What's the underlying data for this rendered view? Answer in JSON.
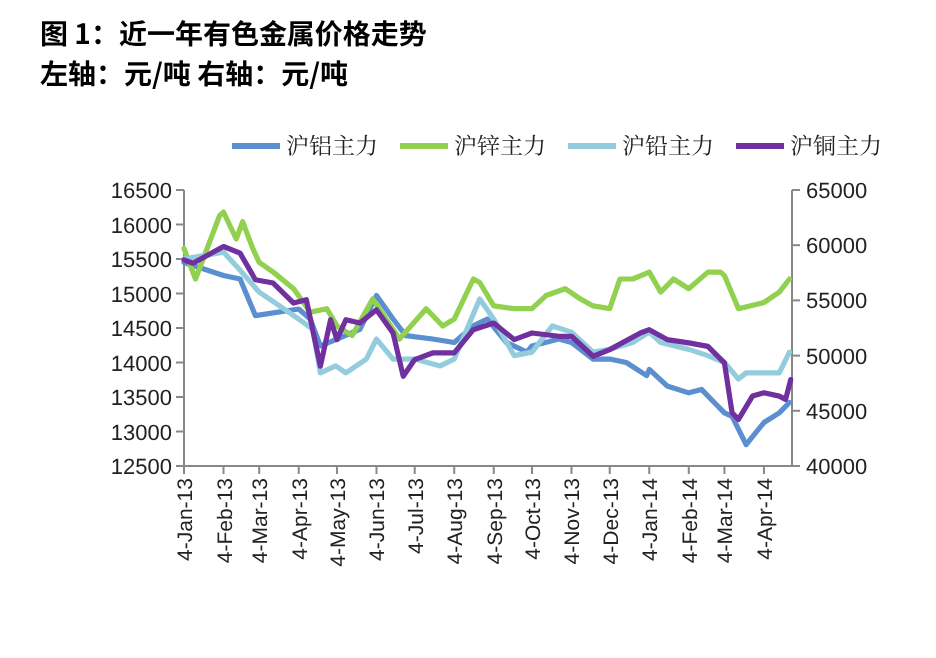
{
  "chart_data": {
    "type": "line",
    "title": "图 1：近一年有色金属价格走势",
    "subtitle": "左轴：元/吨  右轴：元/吨",
    "xlim": [
      "2013-01-04",
      "2014-04-26"
    ],
    "xticks": [
      {
        "value": "2013-01-04",
        "label": "4-Jan-13"
      },
      {
        "value": "2013-02-04",
        "label": "4-Feb-13"
      },
      {
        "value": "2013-03-04",
        "label": "4-Mar-13"
      },
      {
        "value": "2013-04-04",
        "label": "4-Apr-13"
      },
      {
        "value": "2013-05-04",
        "label": "4-May-13"
      },
      {
        "value": "2013-06-04",
        "label": "4-Jun-13"
      },
      {
        "value": "2013-07-04",
        "label": "4-Jul-13"
      },
      {
        "value": "2013-08-04",
        "label": "4-Aug-13"
      },
      {
        "value": "2013-09-04",
        "label": "4-Sep-13"
      },
      {
        "value": "2013-10-04",
        "label": "4-Oct-13"
      },
      {
        "value": "2013-11-04",
        "label": "4-Nov-13"
      },
      {
        "value": "2013-12-04",
        "label": "4-Dec-13"
      },
      {
        "value": "2014-01-04",
        "label": "4-Jan-14"
      },
      {
        "value": "2014-02-04",
        "label": "4-Feb-14"
      },
      {
        "value": "2014-03-04",
        "label": "4-Mar-14"
      },
      {
        "value": "2014-04-04",
        "label": "4-Apr-14"
      }
    ],
    "ylim": [
      12500,
      16500
    ],
    "yticks": [
      12500,
      13000,
      13500,
      14000,
      14500,
      15000,
      15500,
      16000,
      16500
    ],
    "y2lim": [
      40000,
      65000
    ],
    "y2ticks": [
      40000,
      45000,
      50000,
      55000,
      60000,
      65000
    ],
    "grid": false,
    "legend": "top",
    "marker": "none",
    "line_style": "solid",
    "series": [
      {
        "name": "沪铝主力",
        "color": "#5b8fd0",
        "x": [
          "2013-01-04",
          "2013-02-04",
          "2013-02-17",
          "2013-03-01",
          "2013-04-04",
          "2013-04-13",
          "2013-04-21",
          "2013-05-04",
          "2013-05-22",
          "2013-06-04",
          "2013-06-17",
          "2013-06-27",
          "2013-07-18",
          "2013-08-04",
          "2013-08-19",
          "2013-08-30",
          "2013-09-14",
          "2013-09-30",
          "2013-10-04",
          "2013-10-25",
          "2013-11-04",
          "2013-11-21",
          "2013-12-04",
          "2013-12-17",
          "2014-01-02",
          "2014-01-04",
          "2014-01-18",
          "2014-02-04",
          "2014-02-14",
          "2014-02-24",
          "2014-03-04",
          "2014-03-10",
          "2014-03-21",
          "2014-04-04",
          "2014-04-16",
          "2014-04-24"
        ],
        "values": [
          15450,
          15260,
          15210,
          14680,
          14775,
          14630,
          14240,
          14340,
          14480,
          14970,
          14630,
          14390,
          14340,
          14290,
          14530,
          14630,
          14290,
          14150,
          14240,
          14340,
          14290,
          14050,
          14050,
          14000,
          13810,
          13900,
          13660,
          13560,
          13610,
          13420,
          13270,
          13220,
          12810,
          13130,
          13270,
          13420
        ]
      },
      {
        "name": "沪锌主力",
        "color": "#92d050",
        "x": [
          "2013-01-04",
          "2013-01-13",
          "2013-02-01",
          "2013-02-04",
          "2013-02-14",
          "2013-02-19",
          "2013-02-27",
          "2013-03-04",
          "2013-03-15",
          "2013-03-31",
          "2013-04-13",
          "2013-04-26",
          "2013-05-04",
          "2013-05-16",
          "2013-06-01",
          "2013-06-22",
          "2013-07-13",
          "2013-07-26",
          "2013-08-04",
          "2013-08-19",
          "2013-08-24",
          "2013-09-04",
          "2013-09-20",
          "2013-10-04",
          "2013-10-15",
          "2013-10-30",
          "2013-11-11",
          "2013-11-21",
          "2013-12-04",
          "2013-12-12",
          "2013-12-22",
          "2014-01-04",
          "2014-01-13",
          "2014-01-23",
          "2014-02-04",
          "2014-02-19",
          "2014-03-01",
          "2014-03-04",
          "2014-03-15",
          "2014-04-04",
          "2014-04-16",
          "2014-04-24"
        ],
        "values": [
          15650,
          15210,
          16130,
          16180,
          15790,
          16040,
          15650,
          15450,
          15310,
          15070,
          14730,
          14780,
          14530,
          14390,
          14920,
          14340,
          14780,
          14530,
          14630,
          15210,
          15160,
          14820,
          14780,
          14780,
          14970,
          15070,
          14920,
          14820,
          14780,
          15210,
          15210,
          15310,
          15020,
          15210,
          15070,
          15310,
          15310,
          15260,
          14780,
          14870,
          15020,
          15210
        ]
      },
      {
        "name": "沪铅主力",
        "color": "#93cddd",
        "x": [
          "2013-01-04",
          "2013-02-04",
          "2013-02-14",
          "2013-03-04",
          "2013-03-20",
          "2013-04-04",
          "2013-04-15",
          "2013-04-21",
          "2013-05-03",
          "2013-05-11",
          "2013-05-27",
          "2013-06-04",
          "2013-06-17",
          "2013-07-04",
          "2013-07-24",
          "2013-08-04",
          "2013-08-24",
          "2013-09-04",
          "2013-09-20",
          "2013-10-04",
          "2013-10-20",
          "2013-11-04",
          "2013-11-21",
          "2013-12-04",
          "2013-12-22",
          "2014-01-04",
          "2014-01-13",
          "2014-02-04",
          "2014-02-19",
          "2014-03-04",
          "2014-03-15",
          "2014-03-21",
          "2014-04-04",
          "2014-04-16",
          "2014-04-24"
        ],
        "values": [
          15500,
          15600,
          15400,
          15020,
          14820,
          14630,
          14480,
          13850,
          13950,
          13850,
          14050,
          14340,
          14050,
          14050,
          13950,
          14050,
          14920,
          14630,
          14100,
          14150,
          14530,
          14440,
          14150,
          14190,
          14290,
          14440,
          14290,
          14190,
          14100,
          14000,
          13760,
          13850,
          13850,
          13850,
          14150
        ]
      },
      {
        "name": "沪铜主力",
        "color": "#7030a0",
        "axis": "y2",
        "x": [
          "2013-01-04",
          "2013-01-11",
          "2013-02-04",
          "2013-02-17",
          "2013-03-01",
          "2013-03-15",
          "2013-03-31",
          "2013-04-10",
          "2013-04-21",
          "2013-04-29",
          "2013-05-04",
          "2013-05-11",
          "2013-05-22",
          "2013-06-04",
          "2013-06-17",
          "2013-06-25",
          "2013-07-04",
          "2013-07-18",
          "2013-08-04",
          "2013-08-19",
          "2013-09-04",
          "2013-09-20",
          "2013-10-04",
          "2013-10-25",
          "2013-11-04",
          "2013-11-21",
          "2013-12-04",
          "2013-12-28",
          "2014-01-04",
          "2014-01-18",
          "2014-02-04",
          "2014-02-19",
          "2014-03-04",
          "2014-03-10",
          "2014-03-15",
          "2014-03-26",
          "2014-04-04",
          "2014-04-16",
          "2014-04-21",
          "2014-04-25"
        ],
        "values": [
          58675,
          58370,
          59880,
          59280,
          56870,
          56570,
          54760,
          55060,
          49040,
          53250,
          51450,
          53250,
          52950,
          54160,
          52050,
          48130,
          49640,
          50240,
          50240,
          52350,
          52950,
          51450,
          52050,
          51750,
          51750,
          49940,
          50540,
          52050,
          52350,
          51450,
          51150,
          50840,
          49340,
          44820,
          44220,
          46330,
          46630,
          46330,
          46030,
          47830
        ]
      }
    ]
  }
}
